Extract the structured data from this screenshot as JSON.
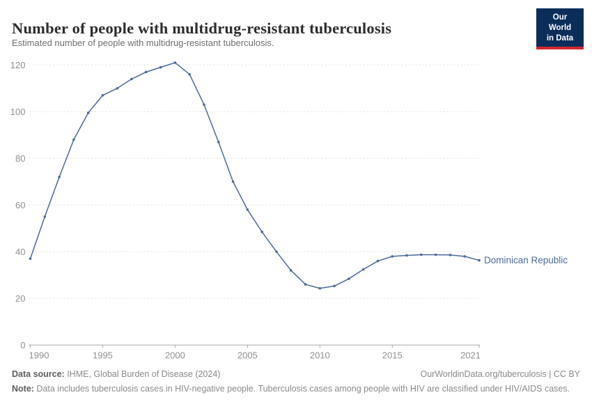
{
  "header": {
    "title": "Number of people with multidrug-resistant tuberculosis",
    "subtitle": "Estimated number of people with multidrug-resistant tuberculosis.",
    "logo": {
      "line1": "Our World",
      "line2": "in Data"
    }
  },
  "chart_data": {
    "type": "line",
    "title": "Number of people with multidrug-resistant tuberculosis",
    "xlabel": "",
    "ylabel": "",
    "xlim": [
      1990,
      2021
    ],
    "ylim": [
      0,
      120
    ],
    "x_ticks": [
      1990,
      1995,
      2000,
      2005,
      2010,
      2015,
      2021
    ],
    "y_ticks": [
      0,
      20,
      40,
      60,
      80,
      100,
      120
    ],
    "grid": "horizontal-dashed",
    "legend_position": "end-of-line",
    "x": [
      1990,
      1991,
      1992,
      1993,
      1994,
      1995,
      1996,
      1997,
      1998,
      1999,
      2000,
      2001,
      2002,
      2003,
      2004,
      2005,
      2006,
      2007,
      2008,
      2009,
      2010,
      2011,
      2012,
      2013,
      2014,
      2015,
      2016,
      2017,
      2018,
      2019,
      2020,
      2021
    ],
    "series": [
      {
        "name": "Dominican Republic",
        "color": "#4c6a9c",
        "values": [
          37,
          55,
          72,
          88,
          99.5,
          107,
          110,
          114,
          117,
          119,
          121,
          116,
          103,
          87,
          70,
          58,
          48.5,
          40,
          32,
          26,
          24.3,
          25.3,
          28.4,
          32.4,
          36,
          38,
          38.4,
          38.7,
          38.7,
          38.6,
          38,
          36.3
        ]
      }
    ]
  },
  "colors": {
    "line": "#4c6a9c",
    "grid": "#dedede",
    "axis": "#a8a8a8",
    "tick_label": "#8f8f8f",
    "logo_bg": "#0b2d5a",
    "logo_stripe": "#d4292e"
  },
  "footer": {
    "source_label": "Data source:",
    "source_text": " IHME, Global Burden of Disease (2024)",
    "link_text": "OurWorldinData.org/tuberculosis | CC BY",
    "note_label": "Note:",
    "note_text": " Data includes tuberculosis cases in HIV-negative people. Tuberculosis cases among people with HIV are classified under HIV/AIDS cases."
  }
}
